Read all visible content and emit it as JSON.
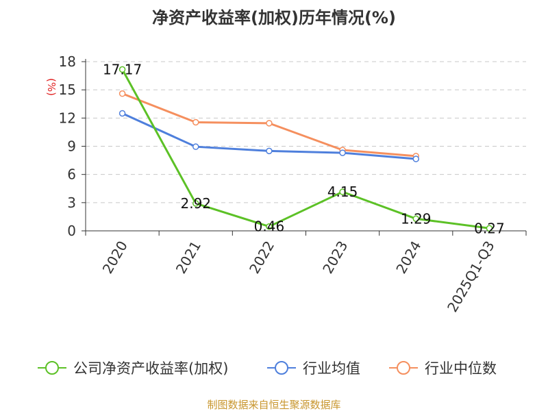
{
  "chart_data": {
    "type": "line",
    "title": "净资产收益率(加权)历年情况(%)",
    "ylabel": "(%)",
    "xlabel": "",
    "categories": [
      "2020",
      "2021",
      "2022",
      "2023",
      "2024",
      "2025Q1-Q3"
    ],
    "ylim": [
      0,
      18
    ],
    "yticks": [
      0,
      3,
      6,
      9,
      12,
      15,
      18
    ],
    "grid": true,
    "legend_position": "bottom",
    "series": [
      {
        "name": "公司净资产收益率(加权)",
        "color": "#5cc126",
        "values": [
          17.17,
          2.92,
          0.46,
          4.15,
          1.29,
          0.27
        ],
        "labels": [
          "17.17",
          "2.92",
          "0.46",
          "4.15",
          "1.29",
          "0.27"
        ]
      },
      {
        "name": "行业均值",
        "color": "#4e7fdc",
        "values": [
          12.5,
          8.95,
          8.5,
          8.3,
          7.65,
          null
        ]
      },
      {
        "name": "行业中位数",
        "color": "#f58f5e",
        "values": [
          14.6,
          11.55,
          11.45,
          8.6,
          7.95,
          null
        ]
      }
    ]
  },
  "footer": "制图数据来自恒生聚源数据库"
}
